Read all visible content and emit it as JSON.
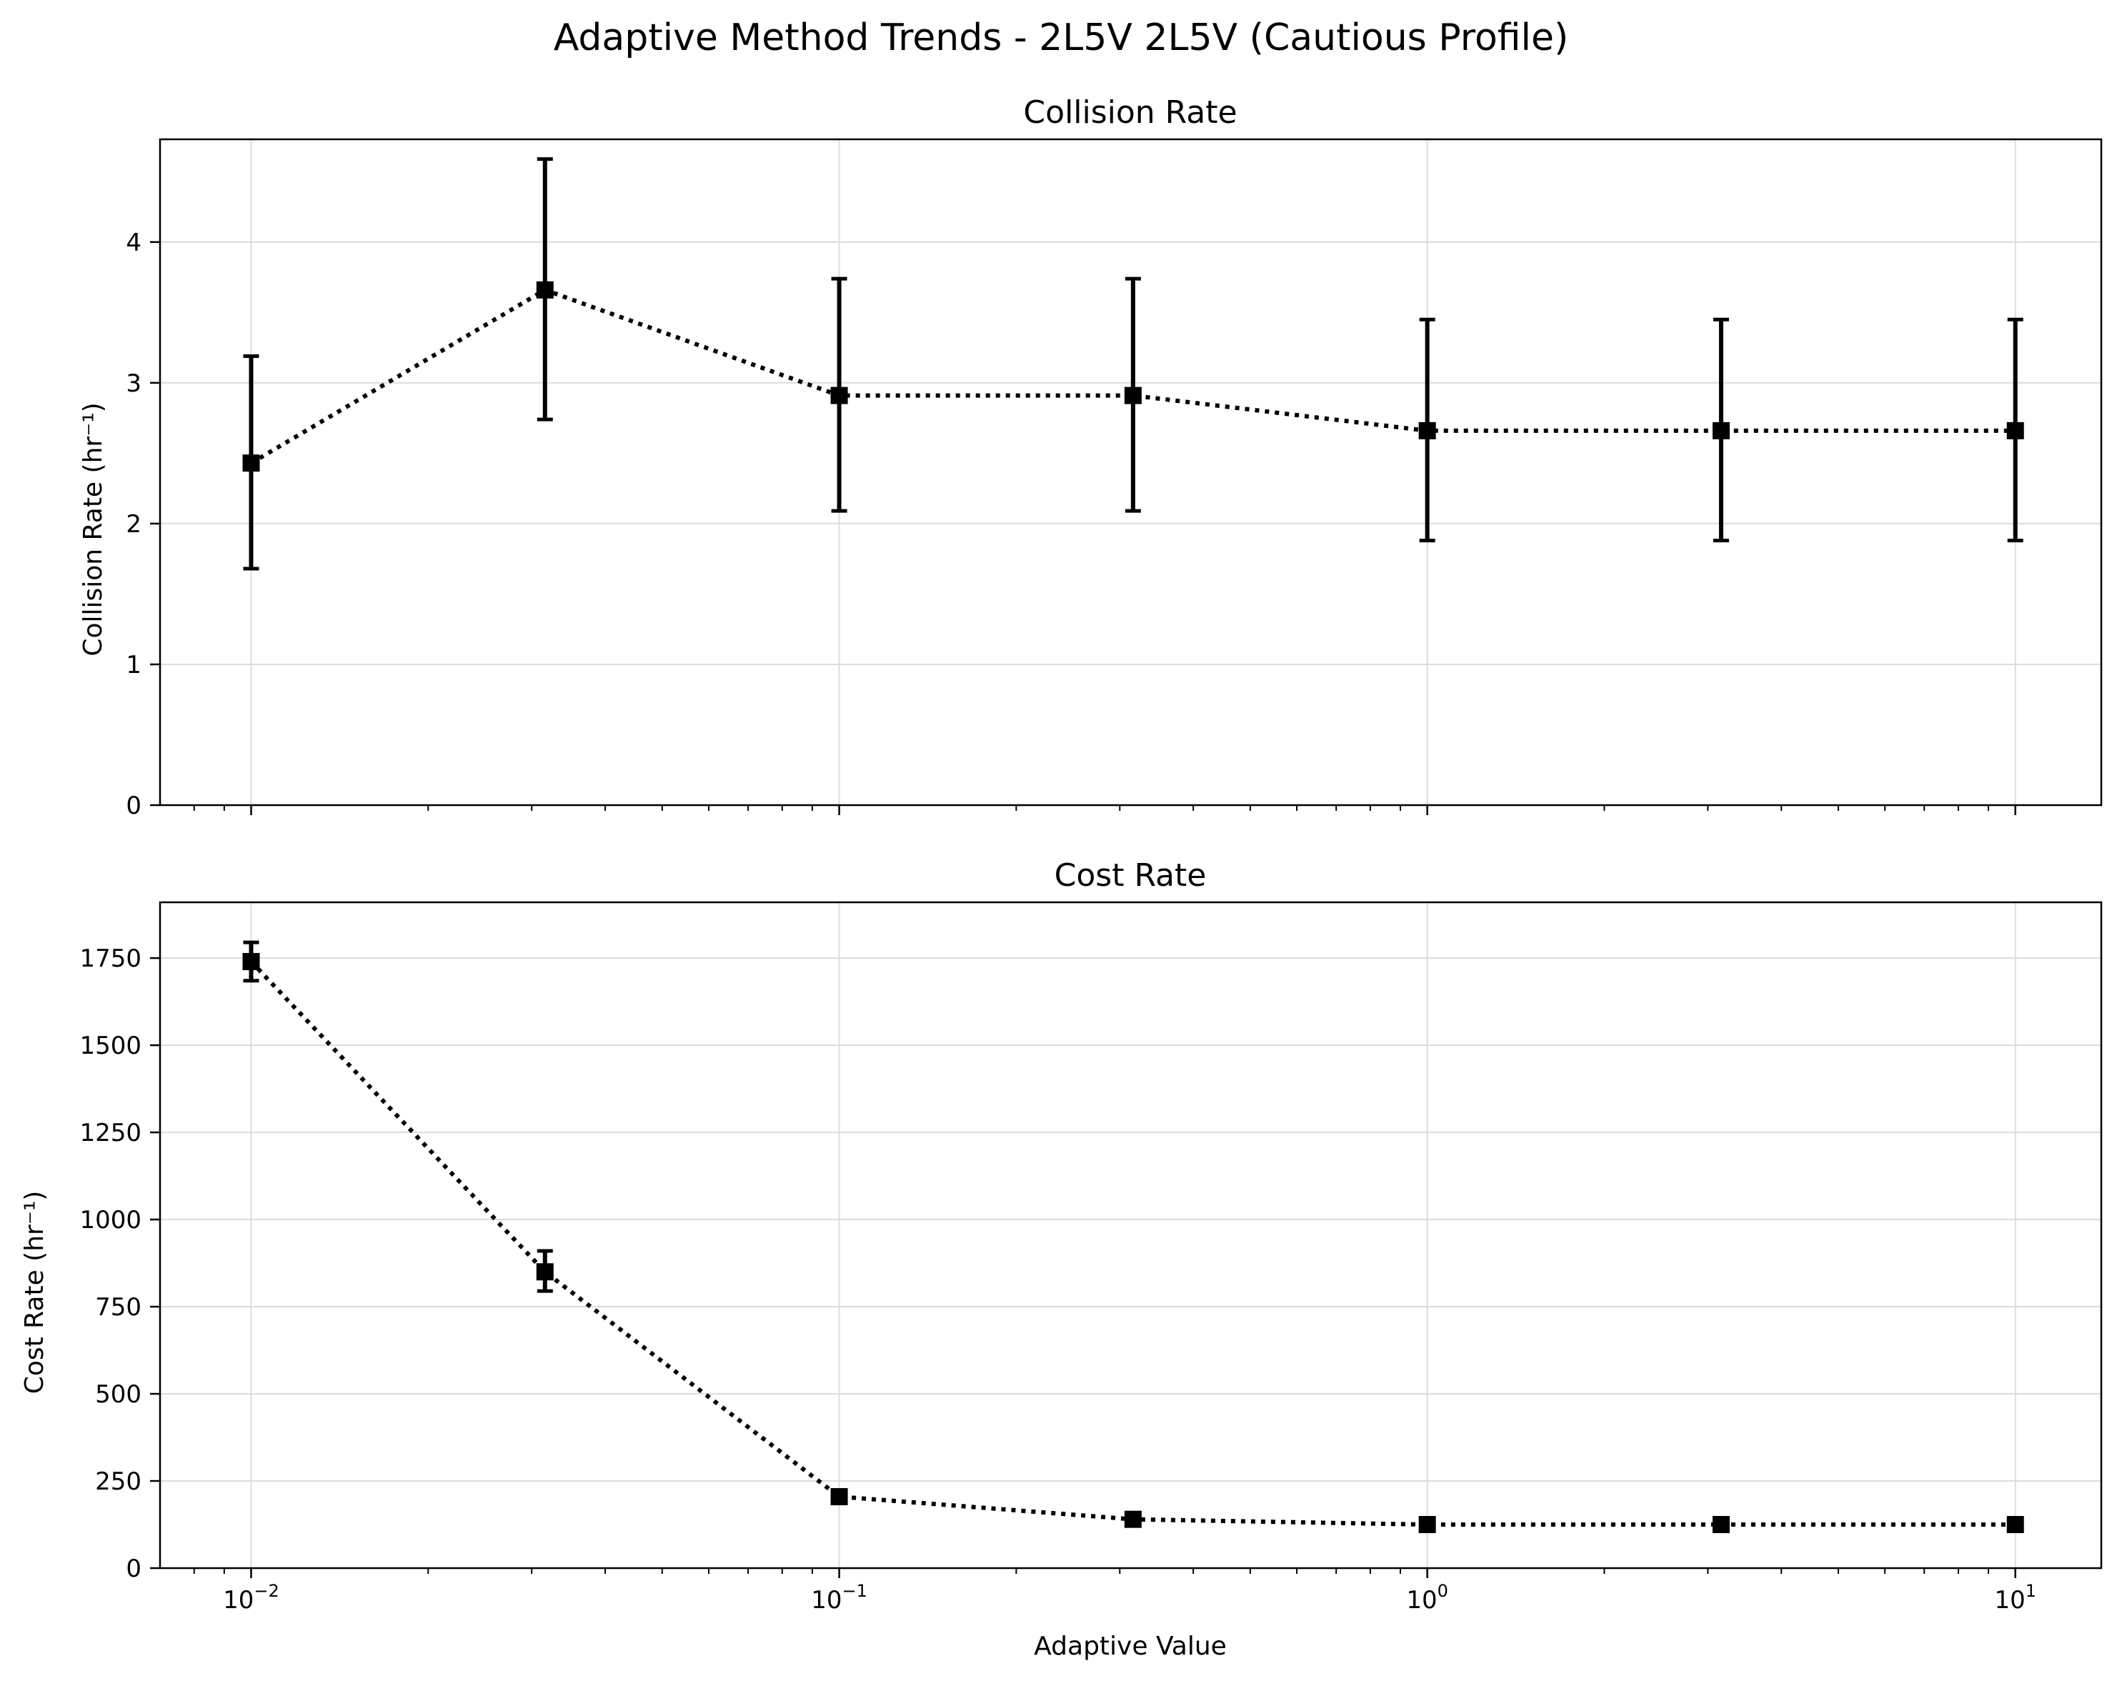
{
  "figure": {
    "suptitle": "Adaptive Method Trends - 2L5V 2L5V (Cautious Profile)"
  },
  "chart_data": [
    {
      "type": "line",
      "title": "Collision Rate",
      "xlabel": "",
      "ylabel": "Collision Rate (hr⁻¹)",
      "xscale": "log",
      "x": [
        0.01,
        0.0316,
        0.1,
        0.316,
        1,
        3.16,
        10
      ],
      "xlim": [
        0.007,
        14
      ],
      "ylim": [
        0,
        4.73
      ],
      "yticks": [
        0,
        1,
        2,
        3,
        4
      ],
      "ytick_labels": [
        "0",
        "1",
        "2",
        "3",
        "4"
      ],
      "xtick_labels_visible": false,
      "grid": true,
      "series": [
        {
          "values": [
            2.43,
            3.66,
            2.91,
            2.91,
            2.66,
            2.66,
            2.66
          ],
          "err_low": [
            1.68,
            2.74,
            2.09,
            2.09,
            1.88,
            1.88,
            1.88
          ],
          "err_high": [
            3.19,
            4.59,
            3.74,
            3.74,
            3.45,
            3.45,
            3.45
          ],
          "color": "#000000",
          "linestyle": "dotted",
          "marker": "square"
        }
      ]
    },
    {
      "type": "line",
      "title": "Cost Rate",
      "xlabel": "Adaptive Value",
      "ylabel": "Cost Rate (hr⁻¹)",
      "xscale": "log",
      "x": [
        0.01,
        0.0316,
        0.1,
        0.316,
        1,
        3.16,
        10
      ],
      "xlim": [
        0.007,
        14
      ],
      "ylim": [
        0,
        1910
      ],
      "yticks": [
        0,
        250,
        500,
        750,
        1000,
        1250,
        1500,
        1750
      ],
      "ytick_labels": [
        "0",
        "250",
        "500",
        "750",
        "1000",
        "1250",
        "1500",
        "1750"
      ],
      "xticks": [
        0.01,
        0.1,
        1,
        10
      ],
      "xtick_labels": [
        {
          "base": "10",
          "exp": "−2"
        },
        {
          "base": "10",
          "exp": "−1"
        },
        {
          "base": "10",
          "exp": "0"
        },
        {
          "base": "10",
          "exp": "1"
        }
      ],
      "grid": true,
      "series": [
        {
          "values": [
            1740,
            850,
            205,
            140,
            125,
            125,
            125
          ],
          "err_low": [
            1685,
            795,
            195,
            132,
            117,
            117,
            117
          ],
          "err_high": [
            1795,
            910,
            215,
            148,
            133,
            133,
            133
          ],
          "color": "#000000",
          "linestyle": "dotted",
          "marker": "square"
        }
      ]
    }
  ]
}
